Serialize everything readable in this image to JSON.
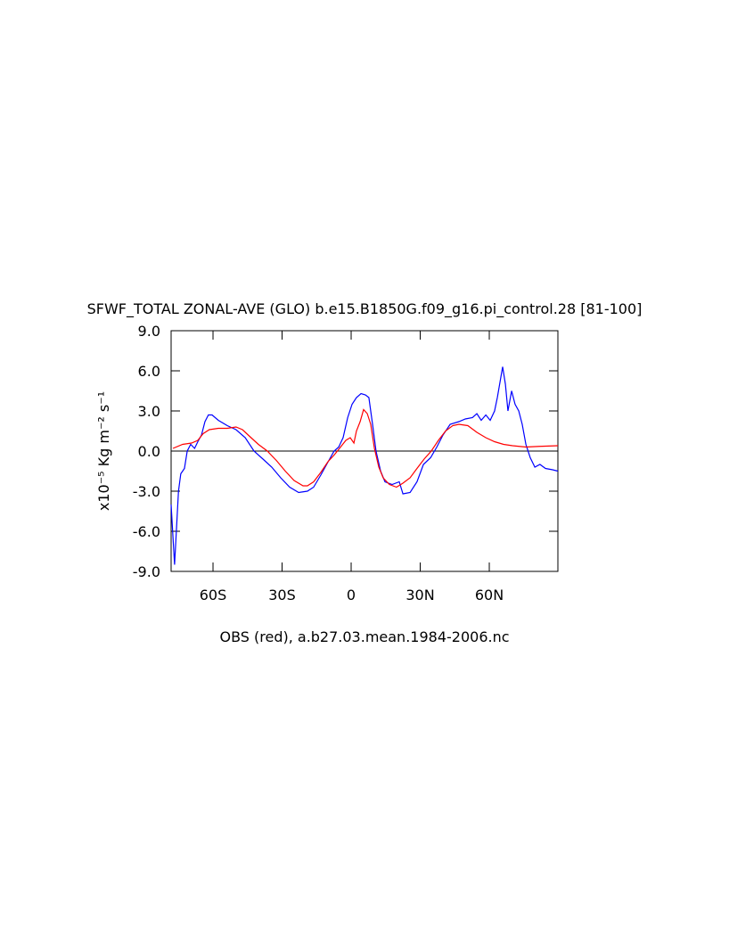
{
  "chart_data": {
    "type": "line",
    "title": "SFWF_TOTAL ZONAL-AVE (GLO) b.e15.B1850G.f09_g16.pi_control.28 [81-100]",
    "caption": "OBS (red), a.b27.03.mean.1984-2006.nc",
    "ylabel": "x10⁻⁵ Kg m⁻² s⁻¹",
    "xlim": [
      -78.2,
      89.8
    ],
    "ylim": [
      -9,
      9
    ],
    "xticks": [
      {
        "value": -60,
        "label": "60S"
      },
      {
        "value": -30,
        "label": "30S"
      },
      0,
      {
        "value": 30,
        "label": "30N"
      },
      {
        "value": 60,
        "label": "60N"
      }
    ],
    "yticks": [
      {
        "value": -9,
        "label": "-9.0"
      },
      {
        "value": -6,
        "label": "-6.0"
      },
      {
        "value": -3,
        "label": "-3.0"
      },
      {
        "value": 0,
        "label": "0.0"
      },
      {
        "value": 3,
        "label": "3.0"
      },
      {
        "value": 6,
        "label": "6.0"
      },
      {
        "value": 9,
        "label": "9.0"
      }
    ],
    "zero_line": true,
    "series": [
      {
        "color": "#0000ff",
        "x": [
          -78.2,
          -76.7,
          -75,
          -74,
          -72.4,
          -71.2,
          -69.7,
          -68,
          -66.6,
          -65,
          -63.5,
          -62,
          -60.4,
          -57.7,
          -53.8,
          -50,
          -46,
          -42.2,
          -38.3,
          -34.5,
          -30.6,
          -26.7,
          -22.8,
          -19,
          -16.3,
          -13.2,
          -10,
          -7.4,
          -5.4,
          -3.5,
          -1.5,
          0.4,
          2.3,
          4.3,
          6.2,
          7.7,
          9.3,
          10.8,
          12.8,
          14.7,
          17.8,
          20.9,
          22.5,
          25.6,
          28.6,
          31.4,
          34.5,
          37.2,
          39.9,
          43,
          46.8,
          49.6,
          52.7,
          54.6,
          56.5,
          58.5,
          60.4,
          62.3,
          63.5,
          65,
          65.8,
          67,
          68.1,
          69.7,
          71.2,
          72.8,
          74.3,
          75.9,
          77.8,
          79.8,
          82,
          84.4,
          87.5,
          89.8
        ],
        "values": [
          -4,
          -8.5,
          -3,
          -1.7,
          -1.3,
          0,
          0.5,
          0.2,
          0.7,
          1.2,
          2.2,
          2.7,
          2.7,
          2.3,
          1.9,
          1.6,
          1.0,
          0.0,
          -0.6,
          -1.2,
          -2.0,
          -2.7,
          -3.1,
          -3.0,
          -2.7,
          -1.8,
          -0.8,
          0.0,
          0.3,
          1.0,
          2.5,
          3.5,
          4.0,
          4.3,
          4.2,
          4.0,
          2.0,
          0.0,
          -1.5,
          -2.3,
          -2.5,
          -2.3,
          -3.2,
          -3.1,
          -2.3,
          -1.0,
          -0.5,
          0.3,
          1.2,
          2.0,
          2.2,
          2.4,
          2.5,
          2.8,
          2.3,
          2.7,
          2.3,
          3.0,
          4.0,
          5.5,
          6.3,
          5.0,
          3.0,
          4.5,
          3.5,
          3.0,
          2.0,
          0.5,
          -0.5,
          -1.2,
          -1.0,
          -1.3,
          -1.4,
          -1.5
        ]
      },
      {
        "color": "#ff0000",
        "x": [
          -77.4,
          -73.2,
          -69.3,
          -66.6,
          -64.3,
          -61.6,
          -57.7,
          -53.8,
          -50,
          -47.2,
          -44.1,
          -40.3,
          -36.4,
          -32.5,
          -28.6,
          -24.8,
          -20.9,
          -19,
          -16.3,
          -13.2,
          -10.1,
          -7.4,
          -4.6,
          -2.3,
          -0.4,
          1.2,
          2.3,
          3.9,
          5.4,
          7,
          8.5,
          10.1,
          12,
          13.9,
          16.6,
          19.7,
          22.5,
          25.6,
          28.6,
          31.7,
          34.8,
          37.9,
          41,
          44.1,
          46.8,
          50.7,
          54.6,
          58.5,
          62.3,
          66.2,
          70.1,
          75.9,
          81.7,
          89.8
        ],
        "values": [
          0.2,
          0.5,
          0.6,
          0.8,
          1.3,
          1.6,
          1.7,
          1.7,
          1.8,
          1.6,
          1.1,
          0.5,
          0.0,
          -0.7,
          -1.5,
          -2.2,
          -2.6,
          -2.6,
          -2.3,
          -1.6,
          -0.8,
          -0.3,
          0.3,
          0.8,
          1.0,
          0.6,
          1.5,
          2.2,
          3.1,
          2.8,
          2.0,
          0.2,
          -1.2,
          -2.0,
          -2.5,
          -2.7,
          -2.4,
          -2.0,
          -1.3,
          -0.6,
          0.0,
          0.8,
          1.5,
          1.9,
          2.0,
          1.9,
          1.4,
          1.0,
          0.7,
          0.5,
          0.4,
          0.3,
          0.35,
          0.4
        ]
      }
    ]
  }
}
